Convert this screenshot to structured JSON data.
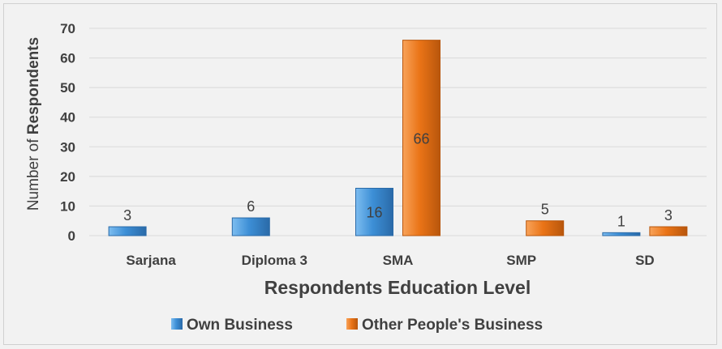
{
  "chart_data": {
    "type": "bar",
    "categories": [
      "Sarjana",
      "Diploma 3",
      "SMA",
      "SMP",
      "SD"
    ],
    "series": [
      {
        "name": "Own Business",
        "values": [
          3,
          6,
          16,
          0,
          1
        ],
        "labels": [
          "3",
          "6",
          "16",
          "",
          "1"
        ]
      },
      {
        "name": "Other People's Business",
        "values": [
          0,
          0,
          66,
          5,
          3
        ],
        "labels": [
          "",
          "",
          "66",
          "5",
          "3"
        ]
      }
    ],
    "title": "",
    "xlabel": "Respondents Education Level",
    "ylabel_prefix": "Number of ",
    "ylabel_bold": "Respondents",
    "ylim": [
      0,
      70
    ],
    "yticks": [
      "0",
      "10",
      "20",
      "30",
      "40",
      "50",
      "60",
      "70"
    ],
    "grid": true,
    "legend_position": "bottom",
    "colors": {
      "own": "#3d8fd6",
      "own_light": "#7dbdf0",
      "own_dark": "#2a6aa8",
      "other": "#ea7417",
      "other_light": "#f8a35a",
      "other_dark": "#b8560c",
      "grid": "#d9d9d9",
      "text": "#404040"
    }
  }
}
